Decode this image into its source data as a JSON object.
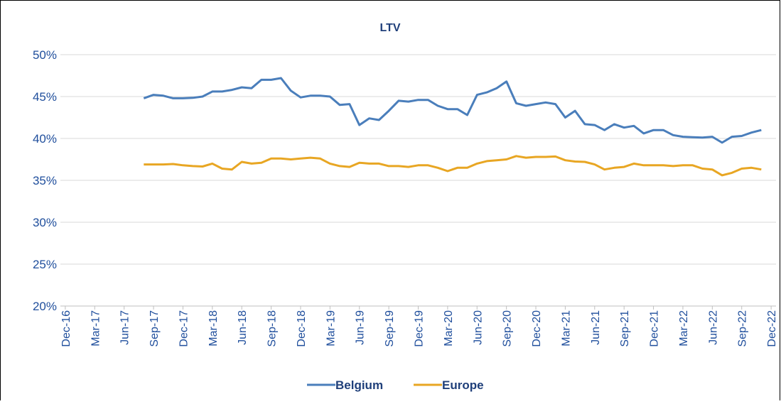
{
  "chart_data": {
    "type": "line",
    "title": "LTV",
    "categories": [
      "Dec-16",
      null,
      null,
      "Mar-17",
      null,
      null,
      "Jun-17",
      null,
      null,
      "Sep-17",
      null,
      null,
      "Dec-17",
      null,
      null,
      "Mar-18",
      null,
      null,
      "Jun-18",
      null,
      null,
      "Sep-18",
      null,
      null,
      "Dec-18",
      null,
      null,
      "Mar-19",
      null,
      null,
      "Jun-19",
      null,
      null,
      "Sep-19",
      null,
      null,
      "Dec-19",
      null,
      null,
      "Mar-20",
      null,
      null,
      "Jun-20",
      null,
      null,
      "Sep-20",
      null,
      null,
      "Dec-20",
      null,
      null,
      "Mar-21",
      null,
      null,
      "Jun-21",
      null,
      null,
      "Sep-21",
      null,
      null,
      "Dec-21",
      null,
      null,
      "Mar-22",
      null,
      null,
      "Jun-22",
      null,
      null,
      "Sep-22",
      null,
      null,
      "Dec-22"
    ],
    "series": [
      {
        "name": "Belgium",
        "color": "#4a7ebb",
        "values": [
          null,
          null,
          null,
          null,
          null,
          null,
          null,
          null,
          44.8,
          45.2,
          45.1,
          44.8,
          44.8,
          44.85,
          45.0,
          45.6,
          45.6,
          45.8,
          46.1,
          46.0,
          47.0,
          47.0,
          47.2,
          45.7,
          44.9,
          45.1,
          45.1,
          45.0,
          44.0,
          44.1,
          41.6,
          42.4,
          42.2,
          43.3,
          44.5,
          44.4,
          44.6,
          44.6,
          43.9,
          43.5,
          43.5,
          42.8,
          45.2,
          45.5,
          46.0,
          46.8,
          44.2,
          43.9,
          44.1,
          44.3,
          44.1,
          42.5,
          43.3,
          41.7,
          41.6,
          41.0,
          41.7,
          41.3,
          41.5,
          40.6,
          41.0,
          41.0,
          40.4,
          40.2,
          40.15,
          40.1,
          40.2,
          39.5,
          40.2,
          40.3,
          40.7,
          41.0,
          null
        ]
      },
      {
        "name": "Europe",
        "color": "#e8a623",
        "values": [
          null,
          null,
          null,
          null,
          null,
          null,
          null,
          null,
          36.9,
          36.9,
          36.9,
          36.95,
          36.8,
          36.7,
          36.65,
          37.0,
          36.4,
          36.3,
          37.2,
          37.0,
          37.1,
          37.6,
          37.6,
          37.5,
          37.6,
          37.7,
          37.6,
          37.0,
          36.7,
          36.6,
          37.1,
          37.0,
          37.0,
          36.7,
          36.7,
          36.6,
          36.8,
          36.8,
          36.5,
          36.1,
          36.5,
          36.5,
          37.0,
          37.3,
          37.4,
          37.5,
          37.9,
          37.7,
          37.8,
          37.8,
          37.85,
          37.4,
          37.25,
          37.2,
          36.9,
          36.3,
          36.5,
          36.6,
          37.0,
          36.8,
          36.8,
          36.8,
          36.7,
          36.8,
          36.8,
          36.4,
          36.3,
          35.6,
          35.9,
          36.4,
          36.5,
          36.3,
          null
        ]
      }
    ],
    "ylim": [
      20,
      50
    ],
    "yticks": [
      {
        "value": 20,
        "label": "20%"
      },
      {
        "value": 25,
        "label": "25%"
      },
      {
        "value": 30,
        "label": "30%"
      },
      {
        "value": 35,
        "label": "35%"
      },
      {
        "value": 40,
        "label": "40%"
      },
      {
        "value": 45,
        "label": "45%"
      },
      {
        "value": 50,
        "label": "50%"
      }
    ],
    "grid": true,
    "legend": "bottom"
  }
}
